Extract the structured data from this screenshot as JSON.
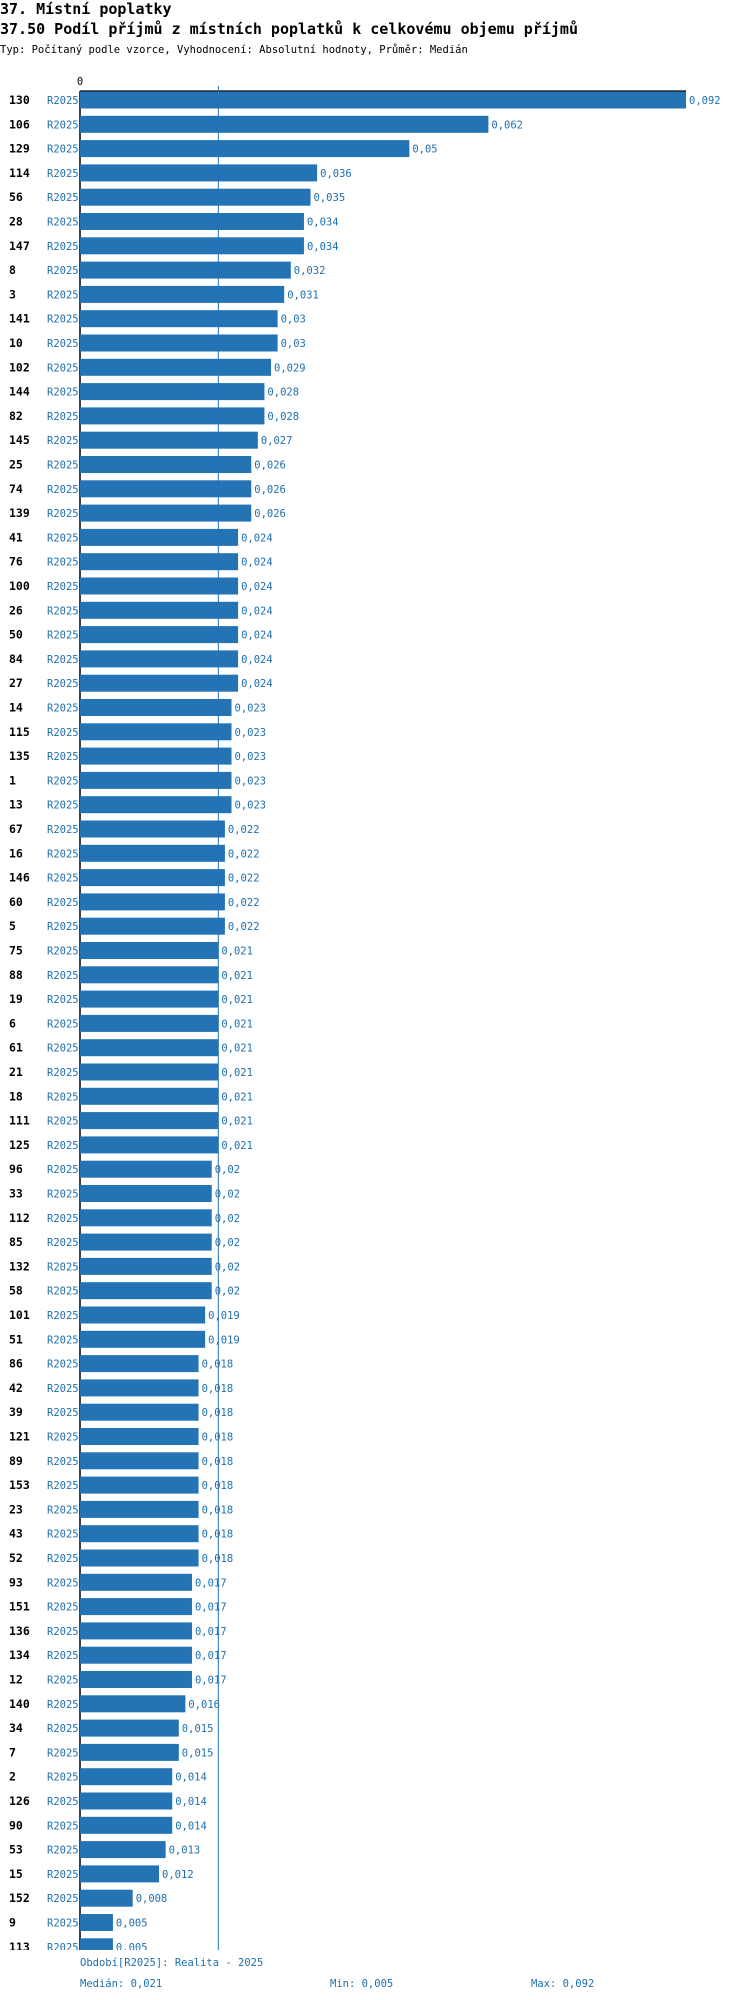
{
  "header": {
    "title": "37. Místní poplatky",
    "subtitle": "37.50 Podíl příjmů z místních poplatků k celkovému objemu příjmů",
    "info": "Typ: Počítaný podle vzorce, Vyhodnocení: Absolutní hodnoty, Průměr: Medián"
  },
  "footer": {
    "period": "Období[R2025]: Realita - 2025",
    "median": "Medián: 0,021",
    "min": "Min: 0,005",
    "max": "Max: 0,092"
  },
  "colors": {
    "bar": "#2373b5",
    "label": "#1f6fb0",
    "median_line": "#2373b5"
  },
  "chart_data": {
    "type": "bar",
    "orientation": "horizontal",
    "axis_tick_label": "0",
    "series_label": "R2025",
    "median": 0.021,
    "xlim": [
      0,
      0.092
    ],
    "categories": [
      "130",
      "106",
      "129",
      "114",
      "56",
      "28",
      "147",
      "8",
      "3",
      "141",
      "10",
      "102",
      "144",
      "82",
      "145",
      "25",
      "74",
      "139",
      "41",
      "76",
      "100",
      "26",
      "50",
      "84",
      "27",
      "14",
      "115",
      "135",
      "1",
      "13",
      "67",
      "16",
      "146",
      "60",
      "5",
      "75",
      "88",
      "19",
      "6",
      "61",
      "21",
      "18",
      "111",
      "125",
      "96",
      "33",
      "112",
      "85",
      "132",
      "58",
      "101",
      "51",
      "86",
      "42",
      "39",
      "121",
      "89",
      "153",
      "23",
      "43",
      "52",
      "93",
      "151",
      "136",
      "134",
      "12",
      "140",
      "34",
      "7",
      "2",
      "126",
      "90",
      "53",
      "15",
      "152",
      "9",
      "113"
    ],
    "values": [
      0.092,
      0.062,
      0.05,
      0.036,
      0.035,
      0.034,
      0.034,
      0.032,
      0.031,
      0.03,
      0.03,
      0.029,
      0.028,
      0.028,
      0.027,
      0.026,
      0.026,
      0.026,
      0.024,
      0.024,
      0.024,
      0.024,
      0.024,
      0.024,
      0.024,
      0.023,
      0.023,
      0.023,
      0.023,
      0.023,
      0.022,
      0.022,
      0.022,
      0.022,
      0.022,
      0.021,
      0.021,
      0.021,
      0.021,
      0.021,
      0.021,
      0.021,
      0.021,
      0.021,
      0.02,
      0.02,
      0.02,
      0.02,
      0.02,
      0.02,
      0.019,
      0.019,
      0.018,
      0.018,
      0.018,
      0.018,
      0.018,
      0.018,
      0.018,
      0.018,
      0.018,
      0.017,
      0.017,
      0.017,
      0.017,
      0.017,
      0.016,
      0.015,
      0.015,
      0.014,
      0.014,
      0.014,
      0.013,
      0.012,
      0.008,
      0.005,
      0.005
    ],
    "value_labels": [
      "0,092",
      "0,062",
      "0,05",
      "0,036",
      "0,035",
      "0,034",
      "0,034",
      "0,032",
      "0,031",
      "0,03",
      "0,03",
      "0,029",
      "0,028",
      "0,028",
      "0,027",
      "0,026",
      "0,026",
      "0,026",
      "0,024",
      "0,024",
      "0,024",
      "0,024",
      "0,024",
      "0,024",
      "0,024",
      "0,023",
      "0,023",
      "0,023",
      "0,023",
      "0,023",
      "0,022",
      "0,022",
      "0,022",
      "0,022",
      "0,022",
      "0,021",
      "0,021",
      "0,021",
      "0,021",
      "0,021",
      "0,021",
      "0,021",
      "0,021",
      "0,021",
      "0,02",
      "0,02",
      "0,02",
      "0,02",
      "0,02",
      "0,02",
      "0,019",
      "0,019",
      "0,018",
      "0,018",
      "0,018",
      "0,018",
      "0,018",
      "0,018",
      "0,018",
      "0,018",
      "0,018",
      "0,017",
      "0,017",
      "0,017",
      "0,017",
      "0,017",
      "0,016",
      "0,015",
      "0,015",
      "0,014",
      "0,014",
      "0,014",
      "0,013",
      "0,012",
      "0,008",
      "0,005",
      "0,005"
    ]
  }
}
